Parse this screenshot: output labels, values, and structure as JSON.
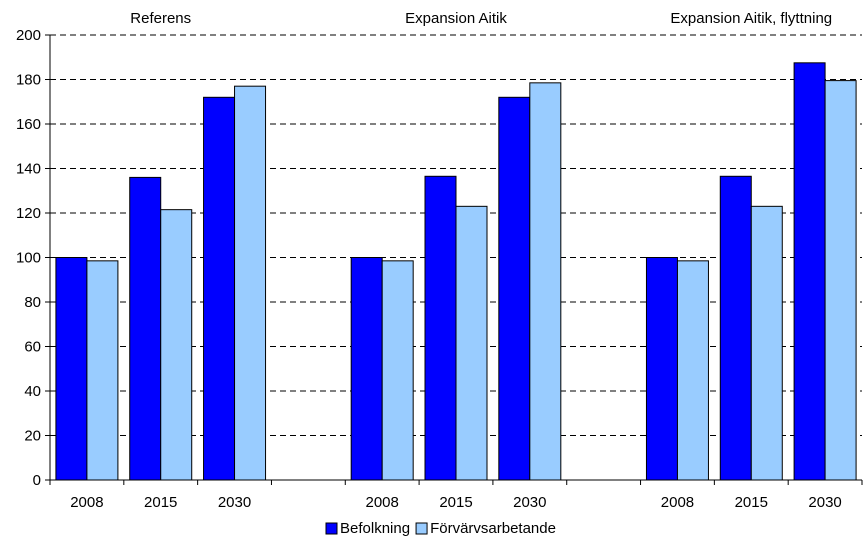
{
  "chart_data": {
    "type": "bar",
    "group_titles": [
      "Referens",
      "Expansion Aitik",
      "Expansion Aitik, flyttning"
    ],
    "categories": [
      "2008",
      "2015",
      "2030",
      "",
      "2008",
      "2015",
      "2030",
      "",
      "2008",
      "2015",
      "2030"
    ],
    "series": [
      {
        "name": "Befolkning",
        "color": "#0000ff",
        "values": [
          100,
          136,
          172,
          null,
          100,
          136.5,
          172,
          null,
          100,
          136.5,
          187.5
        ]
      },
      {
        "name": "Förvärvsarbetande",
        "color": "#99ccff",
        "values": [
          98.5,
          121.5,
          177,
          null,
          98.5,
          123,
          178.5,
          null,
          98.5,
          123,
          179.5
        ]
      }
    ],
    "ylim": [
      0,
      200
    ],
    "yticks": [
      "0",
      "20",
      "40",
      "60",
      "80",
      "100",
      "120",
      "140",
      "160",
      "180",
      "200"
    ],
    "grid": true,
    "legend_position": "bottom"
  }
}
